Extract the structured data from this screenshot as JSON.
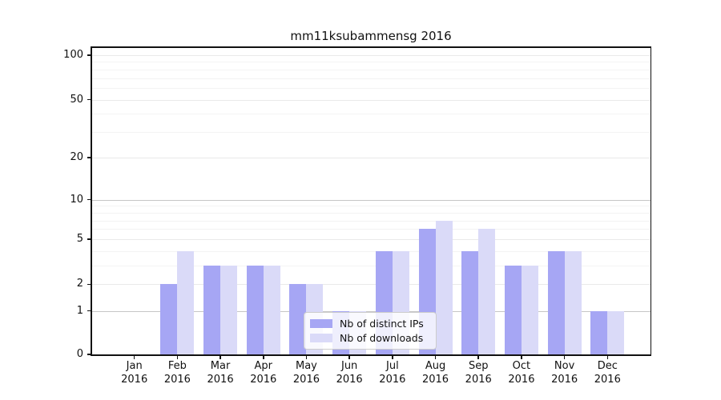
{
  "chart_data": {
    "type": "bar",
    "title": "mm11ksubammensg 2016",
    "x_year": "2016",
    "categories": [
      "Jan",
      "Feb",
      "Mar",
      "Apr",
      "May",
      "Jun",
      "Jul",
      "Aug",
      "Sep",
      "Oct",
      "Nov",
      "Dec"
    ],
    "series": [
      {
        "name": "Nb of distinct IPs",
        "color": "#a6a6f4",
        "values": [
          0,
          2,
          3,
          3,
          2,
          1,
          4,
          6,
          4,
          3,
          4,
          1
        ]
      },
      {
        "name": "Nb of downloads",
        "color": "#dadaf8",
        "values": [
          0,
          4,
          3,
          3,
          2,
          1,
          4,
          7,
          6,
          3,
          4,
          1
        ]
      }
    ],
    "y_axis": {
      "scale": "log1p",
      "major_ticks": [
        0,
        1,
        2,
        5,
        10,
        20,
        50,
        100
      ],
      "minor_gridlines": [
        3,
        4,
        6,
        7,
        8,
        9,
        30,
        40,
        60,
        70,
        80,
        90
      ],
      "ylim": [
        0,
        113
      ]
    },
    "x_axis": {
      "tick_labels_line1": [
        "Jan",
        "Feb",
        "Mar",
        "Apr",
        "May",
        "Jun",
        "Jul",
        "Aug",
        "Sep",
        "Oct",
        "Nov",
        "Dec"
      ],
      "tick_labels_line2": "2016"
    },
    "legend": {
      "position": "lower center",
      "entries": [
        "Nb of distinct IPs",
        "Nb of downloads"
      ]
    },
    "grid": true
  }
}
